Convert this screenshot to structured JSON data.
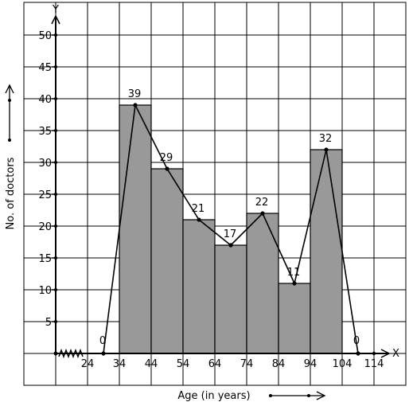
{
  "chart_data": {
    "type": "bar",
    "title": "",
    "xlabel": "Age (in years)",
    "ylabel": "No. of doctors",
    "x_axis_letter": "X",
    "y_axis_letter": "Y",
    "xlim": [
      4,
      124
    ],
    "ylim": [
      -5,
      55
    ],
    "x_ticks": [
      24,
      34,
      44,
      54,
      64,
      74,
      84,
      94,
      104,
      114
    ],
    "y_ticks": [
      5,
      10,
      15,
      20,
      25,
      30,
      35,
      40,
      45,
      50
    ],
    "bars": [
      {
        "from": 34,
        "to": 44,
        "value": 39
      },
      {
        "from": 44,
        "to": 54,
        "value": 29
      },
      {
        "from": 54,
        "to": 64,
        "value": 21
      },
      {
        "from": 64,
        "to": 74,
        "value": 17
      },
      {
        "from": 74,
        "to": 84,
        "value": 22
      },
      {
        "from": 84,
        "to": 94,
        "value": 11
      },
      {
        "from": 94,
        "to": 104,
        "value": 32
      }
    ],
    "frequency_polygon": {
      "x": [
        29,
        39,
        49,
        59,
        69,
        79,
        89,
        99,
        109
      ],
      "y": [
        0,
        39,
        29,
        21,
        17,
        22,
        11,
        32,
        0
      ],
      "labels": [
        "0",
        "39",
        "29",
        "21",
        "17",
        "22",
        "11",
        "32",
        "0"
      ]
    },
    "axis_break": "kink on x-axis between 4 and 24",
    "grid": true,
    "colors": {
      "bar_fill": "#999999",
      "line": "#000000",
      "grid": "#000000"
    }
  }
}
